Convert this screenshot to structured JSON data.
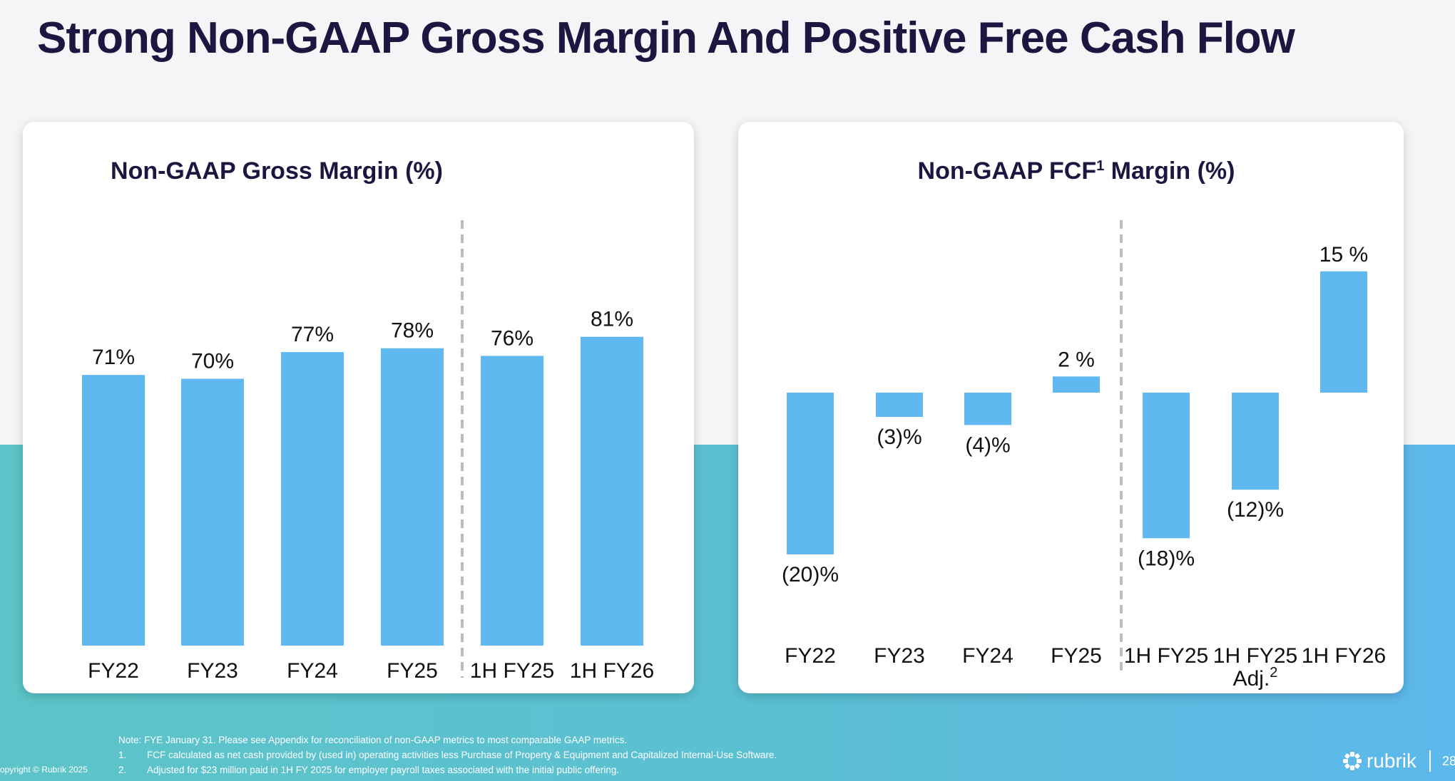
{
  "title": "Strong Non-GAAP Gross Margin And Positive Free Cash Flow",
  "chart_data": [
    {
      "type": "bar",
      "title": "Non-GAAP Gross Margin (%)",
      "categories": [
        "FY22",
        "FY23",
        "FY24",
        "FY25",
        "1H FY25",
        "1H FY26"
      ],
      "values": [
        71,
        70,
        77,
        78,
        76,
        81
      ],
      "value_labels": [
        "71%",
        "70%",
        "77%",
        "78%",
        "76%",
        "81%"
      ],
      "divider_after_index": 3,
      "color": "#60b8f0",
      "grid": false
    },
    {
      "type": "bar",
      "title": "Non-GAAP FCF",
      "title_sup": "1",
      "title_suffix": " Margin (%)",
      "categories": [
        "FY22",
        "FY23",
        "FY24",
        "FY25",
        "1H FY25",
        "1H FY25",
        "1H FY26"
      ],
      "category_sub": [
        "",
        "",
        "",
        "",
        "",
        "Adj.",
        ""
      ],
      "category_sup": [
        "",
        "",
        "",
        "",
        "",
        "2",
        ""
      ],
      "values": [
        -20,
        -3,
        -4,
        2,
        -18,
        -12,
        15
      ],
      "value_labels": [
        "(20)%",
        "(3)%",
        "(4)%",
        "2 %",
        "(18)%",
        "(12)%",
        "15 %"
      ],
      "divider_after_index": 3,
      "color": "#60b8f0",
      "grid": false
    }
  ],
  "footnotes": {
    "note": "Note: FYE January 31. Please see Appendix for reconciliation of non-GAAP metrics to most comparable GAAP metrics.",
    "items": [
      {
        "num": "1.",
        "text": "FCF calculated as net cash provided by (used in) operating activities less Purchase of Property & Equipment and Capitalized Internal-Use Software."
      },
      {
        "num": "2.",
        "text": "Adjusted for $23 million paid in 1H FY 2025 for employer payroll taxes associated with the initial public offering."
      }
    ]
  },
  "copyright": "opyright © Rubrik 2025",
  "brand": {
    "name": "rubrik",
    "icon": "rubrik-logo-icon"
  },
  "page_number": "28"
}
